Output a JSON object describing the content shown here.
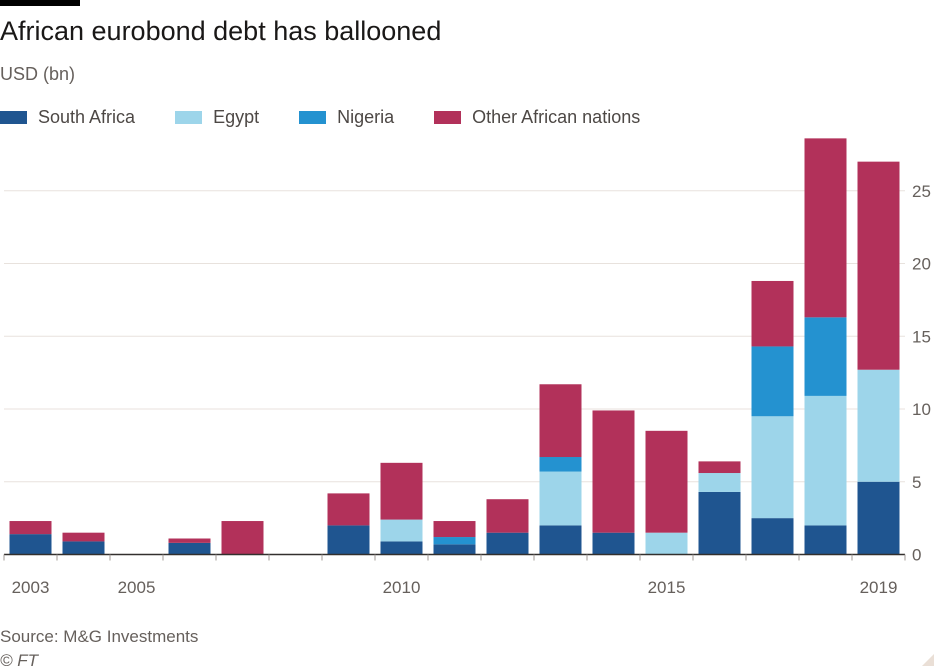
{
  "title": "African eurobond debt has ballooned",
  "subtitle": "USD (bn)",
  "source": "Source: M&G Investments",
  "credit": "© FT",
  "legend": [
    {
      "label": "South Africa",
      "color": "#1f5590"
    },
    {
      "label": "Egypt",
      "color": "#9dd5ea"
    },
    {
      "label": "Nigeria",
      "color": "#2492d0"
    },
    {
      "label": "Other African nations",
      "color": "#b2315a"
    }
  ],
  "chart_data": {
    "type": "bar",
    "stacked": true,
    "title": "African eurobond debt has ballooned",
    "ylabel": "USD (bn)",
    "xlabel": "",
    "ylim": [
      0,
      28.5
    ],
    "y_ticks": [
      0,
      5,
      10,
      15,
      20,
      25
    ],
    "y_axis_side": "right",
    "grid": true,
    "legend_position": "top-left",
    "x_tick_labels": [
      "2003",
      "2005",
      "2010",
      "2015",
      "2019"
    ],
    "categories": [
      "2003",
      "2004",
      "2005",
      "2006",
      "2007",
      "2008",
      "2009",
      "2010",
      "2011",
      "2012",
      "2013",
      "2014",
      "2015",
      "2016",
      "2017",
      "2018",
      "2019"
    ],
    "series": [
      {
        "name": "South Africa",
        "color": "#1f5590",
        "values": [
          1.4,
          0.9,
          0,
          0.8,
          0,
          0,
          2.0,
          0.9,
          0.7,
          1.5,
          2.0,
          1.5,
          0,
          4.3,
          2.5,
          2.0,
          5.0
        ]
      },
      {
        "name": "Egypt",
        "color": "#9dd5ea",
        "values": [
          0,
          0,
          0,
          0,
          0,
          0,
          0,
          1.5,
          0,
          0,
          3.7,
          0,
          1.5,
          1.3,
          7.0,
          8.9,
          7.7
        ]
      },
      {
        "name": "Nigeria",
        "color": "#2492d0",
        "values": [
          0,
          0,
          0,
          0,
          0,
          0,
          0,
          0,
          0.5,
          0,
          1.0,
          0,
          0,
          0,
          4.8,
          5.4,
          0
        ]
      },
      {
        "name": "Other African nations",
        "color": "#b2315a",
        "values": [
          0.9,
          0.6,
          0,
          0.3,
          2.3,
          0,
          2.2,
          3.9,
          1.1,
          2.3,
          5.0,
          8.4,
          7.0,
          0.8,
          4.5,
          12.3,
          14.3
        ]
      }
    ]
  }
}
